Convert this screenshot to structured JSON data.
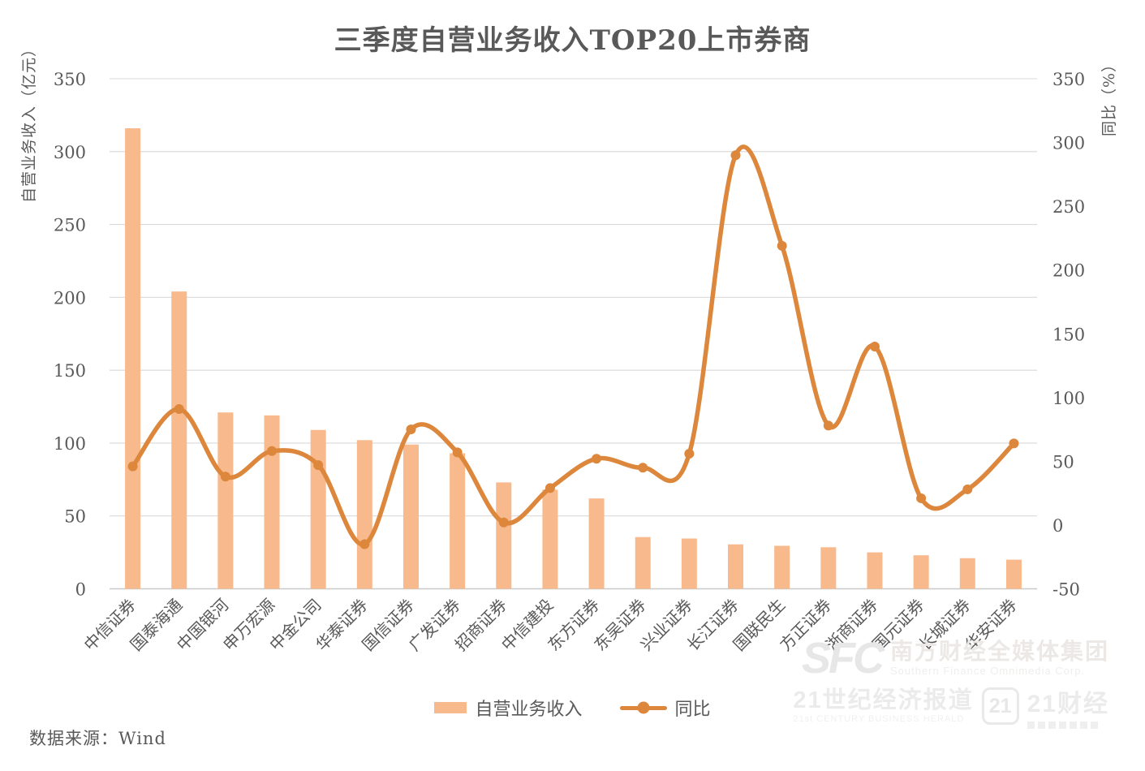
{
  "title": "三季度自营业务收入TOP20上市券商",
  "source_note": "数据来源：Wind",
  "colors": {
    "bar": "#F8B98C",
    "line": "#DC873C",
    "gridline": "#D9D9D9",
    "axis_line": "#C9C9C9",
    "text": "#595959"
  },
  "chart_data": {
    "type": "bar",
    "subtype": "combo bar+line, dual axis",
    "title": "三季度自营业务收入TOP20上市券商",
    "grid": true,
    "legend_position": "bottom",
    "categories": [
      "中信证券",
      "国泰海通",
      "中国银河",
      "申万宏源",
      "中金公司",
      "华泰证券",
      "国信证券",
      "广发证券",
      "招商证券",
      "中信建投",
      "东方证券",
      "东吴证券",
      "兴业证券",
      "长江证券",
      "国联民生",
      "方正证券",
      "浙商证券",
      "国元证券",
      "长城证券",
      "华安证券"
    ],
    "series": [
      {
        "name": "自营业务收入",
        "type": "bar",
        "axis": "left",
        "color": "#F8B98C",
        "values": [
          316,
          204,
          121,
          119,
          109,
          102,
          99,
          93,
          73,
          68,
          62,
          35.5,
          34.5,
          30.5,
          29.5,
          28.5,
          25,
          23,
          21,
          20
        ]
      },
      {
        "name": "同比",
        "type": "line",
        "axis": "right",
        "color": "#DC873C",
        "smooth": true,
        "marker": "circle",
        "values": [
          46,
          91,
          38,
          58,
          47,
          -15,
          75,
          57,
          2,
          29,
          52,
          45,
          56,
          290,
          219,
          78,
          140,
          21,
          28,
          64
        ]
      }
    ],
    "left_axis": {
      "label": "自营业务收入（亿元）",
      "min": 0,
      "max": 350,
      "ticks": [
        0,
        50,
        100,
        150,
        200,
        250,
        300,
        350
      ]
    },
    "right_axis": {
      "label": "同比（%）",
      "min": -50,
      "max": 350,
      "ticks": [
        -50,
        0,
        50,
        100,
        150,
        200,
        250,
        300,
        350
      ]
    }
  },
  "legend": {
    "bar_label": "自营业务收入",
    "line_label": "同比"
  },
  "watermark": {
    "sfc_logo": "SFC",
    "group_cn": "南方财经全媒体集团",
    "group_en": "Southern Finance Omnimedia Corp.",
    "herald_cn": "21世纪经济报道",
    "herald_en": "21st CENTURY BUSINESS HERALD",
    "badge": "21",
    "cj_cn": "21财经"
  }
}
